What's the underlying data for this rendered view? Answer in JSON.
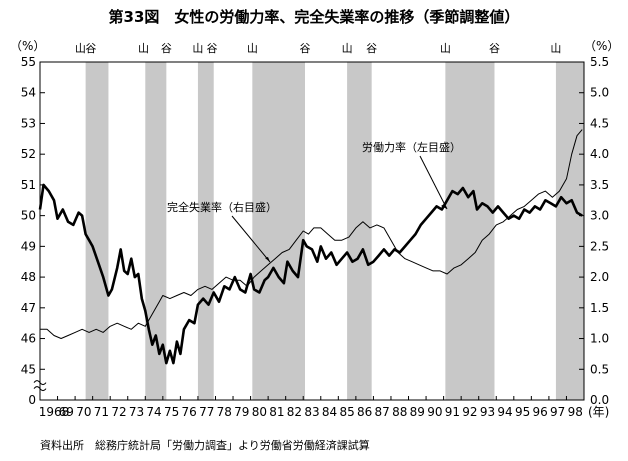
{
  "chart_data": {
    "type": "line",
    "title": "第33図　女性の労働力率、完全失業率の推移（季節調整値）",
    "source": "資料出所　総務庁統計局「労働力調査」より労働省労働経済課試算",
    "left_unit": "（%）",
    "right_unit": "（%）",
    "x_unit": "(年)",
    "x_range": [
      1968,
      1999
    ],
    "x_ticks": [
      "1968",
      "69",
      "70",
      "71",
      "72",
      "73",
      "74",
      "75",
      "76",
      "77",
      "78",
      "79",
      "80",
      "81",
      "82",
      "83",
      "84",
      "85",
      "86",
      "87",
      "88",
      "89",
      "90",
      "91",
      "92",
      "93",
      "94",
      "95",
      "96",
      "97",
      "98"
    ],
    "left_axis": {
      "range": [
        44,
        55
      ],
      "ticks": [
        "55",
        "54",
        "53",
        "52",
        "51",
        "50",
        "49",
        "48",
        "47",
        "46",
        "45"
      ],
      "zero_label": "0"
    },
    "right_axis": {
      "range": [
        0,
        5.5
      ],
      "ticks": [
        "5.5",
        "5.0",
        "4.5",
        "4.0",
        "3.5",
        "3.0",
        "2.5",
        "2.0",
        "1.5",
        "1.0",
        "0.5",
        "0.0"
      ]
    },
    "cycle_labels": [
      {
        "label": "山",
        "x": 1970.3
      },
      {
        "label": "谷",
        "x": 1970.9
      },
      {
        "label": "山",
        "x": 1973.9
      },
      {
        "label": "谷",
        "x": 1975.2
      },
      {
        "label": "山",
        "x": 1977.0
      },
      {
        "label": "谷",
        "x": 1977.8
      },
      {
        "label": "山",
        "x": 1980.1
      },
      {
        "label": "谷",
        "x": 1983.1
      },
      {
        "label": "山",
        "x": 1985.5
      },
      {
        "label": "谷",
        "x": 1986.9
      },
      {
        "label": "山",
        "x": 1991.1
      },
      {
        "label": "谷",
        "x": 1993.9
      },
      {
        "label": "山",
        "x": 1997.4
      }
    ],
    "recessions": [
      [
        1970.6,
        1971.9
      ],
      [
        1974.0,
        1975.2
      ],
      [
        1977.0,
        1977.9
      ],
      [
        1980.1,
        1983.1
      ],
      [
        1985.5,
        1986.9
      ],
      [
        1991.1,
        1993.9
      ],
      [
        1997.4,
        1999.0
      ]
    ],
    "annotations": [
      {
        "text": "労働力率（左目盛）",
        "series": "labor",
        "x": 1992.0
      },
      {
        "text": "完全失業率（右目盛）",
        "series": "unemp",
        "x": 1982.0
      }
    ],
    "series": [
      {
        "id": "labor",
        "axis": "left",
        "x": [
          1968.0,
          1968.2,
          1968.5,
          1968.8,
          1969.0,
          1969.3,
          1969.6,
          1969.9,
          1970.2,
          1970.4,
          1970.6,
          1970.8,
          1971.0,
          1971.3,
          1971.6,
          1971.9,
          1972.1,
          1972.4,
          1972.6,
          1972.8,
          1973.0,
          1973.2,
          1973.4,
          1973.6,
          1973.8,
          1974.0,
          1974.2,
          1974.4,
          1974.6,
          1974.8,
          1975.0,
          1975.2,
          1975.4,
          1975.6,
          1975.8,
          1976.0,
          1976.2,
          1976.5,
          1976.8,
          1977.0,
          1977.3,
          1977.6,
          1977.9,
          1978.2,
          1978.5,
          1978.8,
          1979.1,
          1979.4,
          1979.7,
          1980.0,
          1980.2,
          1980.5,
          1980.8,
          1981.0,
          1981.3,
          1981.6,
          1981.9,
          1982.1,
          1982.4,
          1982.7,
          1983.0,
          1983.2,
          1983.5,
          1983.8,
          1984.0,
          1984.3,
          1984.6,
          1984.9,
          1985.2,
          1985.5,
          1985.8,
          1986.1,
          1986.4,
          1986.7,
          1987.0,
          1987.3,
          1987.6,
          1987.9,
          1988.2,
          1988.5,
          1988.8,
          1989.1,
          1989.4,
          1989.7,
          1990.0,
          1990.3,
          1990.6,
          1990.9,
          1991.2,
          1991.5,
          1991.8,
          1992.1,
          1992.4,
          1992.7,
          1992.9,
          1993.2,
          1993.5,
          1993.8,
          1994.1,
          1994.4,
          1994.7,
          1995.0,
          1995.3,
          1995.6,
          1995.9,
          1996.2,
          1996.5,
          1996.8,
          1997.1,
          1997.4,
          1997.7,
          1998.0,
          1998.3,
          1998.6,
          1998.9
        ],
        "y": [
          50.2,
          51.0,
          50.8,
          50.5,
          49.9,
          50.2,
          49.8,
          49.7,
          50.1,
          50.0,
          49.4,
          49.2,
          49.0,
          48.5,
          48.0,
          47.4,
          47.6,
          48.3,
          48.9,
          48.2,
          48.1,
          48.6,
          48.0,
          48.1,
          47.3,
          46.9,
          46.3,
          45.8,
          46.1,
          45.5,
          45.8,
          45.2,
          45.6,
          45.2,
          45.9,
          45.5,
          46.3,
          46.6,
          46.5,
          47.1,
          47.3,
          47.1,
          47.5,
          47.2,
          47.7,
          47.6,
          48.0,
          47.6,
          47.5,
          48.1,
          47.6,
          47.5,
          47.9,
          48.0,
          48.3,
          48.0,
          47.8,
          48.5,
          48.2,
          48.0,
          49.2,
          49.0,
          48.9,
          48.5,
          49.0,
          48.6,
          48.8,
          48.4,
          48.6,
          48.8,
          48.5,
          48.6,
          48.9,
          48.4,
          48.5,
          48.7,
          48.9,
          48.7,
          48.9,
          48.8,
          49.0,
          49.2,
          49.4,
          49.7,
          49.9,
          50.1,
          50.3,
          50.2,
          50.5,
          50.8,
          50.7,
          50.9,
          50.6,
          50.8,
          50.2,
          50.4,
          50.3,
          50.1,
          50.3,
          50.1,
          49.9,
          50.0,
          49.9,
          50.2,
          50.1,
          50.3,
          50.2,
          50.5,
          50.4,
          50.3,
          50.6,
          50.4,
          50.5,
          50.1,
          50.0
        ]
      },
      {
        "id": "unemp",
        "axis": "right",
        "x": [
          1968.0,
          1968.4,
          1968.8,
          1969.2,
          1969.6,
          1970.0,
          1970.4,
          1970.8,
          1971.2,
          1971.6,
          1972.0,
          1972.4,
          1972.8,
          1973.2,
          1973.6,
          1974.0,
          1974.4,
          1974.8,
          1975.0,
          1975.4,
          1975.8,
          1976.2,
          1976.6,
          1977.0,
          1977.4,
          1977.8,
          1978.2,
          1978.6,
          1979.0,
          1979.4,
          1979.8,
          1980.2,
          1980.6,
          1981.0,
          1981.4,
          1981.8,
          1982.2,
          1982.6,
          1983.0,
          1983.3,
          1983.6,
          1984.0,
          1984.4,
          1984.8,
          1985.2,
          1985.6,
          1986.0,
          1986.4,
          1986.8,
          1987.2,
          1987.6,
          1988.0,
          1988.4,
          1988.8,
          1989.2,
          1989.6,
          1990.0,
          1990.4,
          1990.8,
          1991.2,
          1991.6,
          1992.0,
          1992.4,
          1992.8,
          1993.2,
          1993.6,
          1994.0,
          1994.4,
          1994.8,
          1995.2,
          1995.6,
          1996.0,
          1996.4,
          1996.8,
          1997.2,
          1997.6,
          1998.0,
          1998.3,
          1998.6,
          1998.9
        ],
        "y": [
          1.15,
          1.15,
          1.05,
          1.0,
          1.05,
          1.1,
          1.15,
          1.1,
          1.15,
          1.1,
          1.2,
          1.25,
          1.2,
          1.15,
          1.25,
          1.2,
          1.4,
          1.6,
          1.7,
          1.65,
          1.7,
          1.75,
          1.7,
          1.8,
          1.85,
          1.8,
          1.9,
          2.0,
          1.95,
          1.95,
          1.85,
          2.0,
          2.1,
          2.2,
          2.3,
          2.4,
          2.45,
          2.6,
          2.75,
          2.7,
          2.8,
          2.8,
          2.7,
          2.6,
          2.6,
          2.65,
          2.8,
          2.9,
          2.8,
          2.85,
          2.8,
          2.6,
          2.4,
          2.3,
          2.25,
          2.2,
          2.15,
          2.1,
          2.1,
          2.05,
          2.15,
          2.2,
          2.3,
          2.4,
          2.6,
          2.7,
          2.85,
          2.9,
          3.0,
          3.1,
          3.15,
          3.25,
          3.35,
          3.4,
          3.3,
          3.4,
          3.6,
          4.0,
          4.3,
          4.4
        ]
      }
    ]
  }
}
